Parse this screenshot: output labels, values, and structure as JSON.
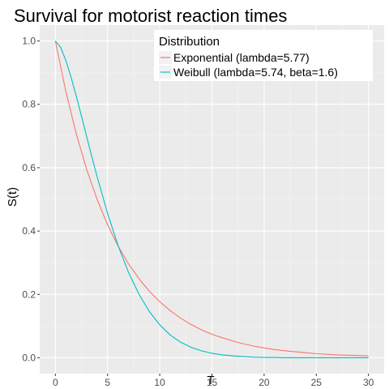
{
  "chart_data": {
    "type": "line",
    "title": "Survival for motorist reaction times",
    "xlabel": "T",
    "ylabel": "S(t)",
    "xlim": [
      -1.5,
      31.5
    ],
    "ylim": [
      -0.05,
      1.05
    ],
    "x_ticks": [
      0,
      5,
      10,
      15,
      20,
      25,
      30
    ],
    "x_tick_labels": [
      "0",
      "5",
      "10",
      "15",
      "20",
      "25",
      "30"
    ],
    "y_ticks": [
      0.0,
      0.2,
      0.4,
      0.6,
      0.8,
      1.0
    ],
    "y_tick_labels": [
      "0.0",
      "0.2",
      "0.4",
      "0.6",
      "0.8",
      "1.0"
    ],
    "grid": true,
    "legend": {
      "title": "Distribution",
      "placement": "top-right",
      "entries": [
        "Exponential (lambda=5.77)",
        "Weibull (lambda=5.74, beta=1.6)"
      ]
    },
    "series": [
      {
        "name": "Exponential (lambda=5.77)",
        "color": "#F8766D",
        "x": [
          0,
          1,
          2,
          3,
          4,
          5,
          6,
          7,
          8,
          9,
          10,
          11,
          12,
          13,
          14,
          15,
          16,
          17,
          18,
          19,
          20,
          21,
          22,
          23,
          24,
          25,
          26,
          27,
          28,
          29,
          30
        ],
        "y": [
          1.0,
          0.841,
          0.707,
          0.594,
          0.5,
          0.42,
          0.353,
          0.297,
          0.25,
          0.21,
          0.177,
          0.149,
          0.125,
          0.105,
          0.088,
          0.074,
          0.063,
          0.053,
          0.044,
          0.037,
          0.031,
          0.026,
          0.022,
          0.019,
          0.016,
          0.013,
          0.011,
          0.009,
          0.008,
          0.007,
          0.006
        ]
      },
      {
        "name": "Weibull (lambda=5.74, beta=1.6)",
        "color": "#00BFC4",
        "x": [
          0,
          0.5,
          1,
          1.5,
          2,
          2.5,
          3,
          3.5,
          4,
          5,
          6,
          7,
          8,
          9,
          10,
          11,
          12,
          13,
          14,
          15,
          16,
          17,
          18,
          19,
          20,
          21,
          22,
          23,
          24,
          25,
          26,
          27,
          28,
          29,
          30
        ],
        "y": [
          1.0,
          0.98,
          0.939,
          0.886,
          0.826,
          0.763,
          0.698,
          0.634,
          0.572,
          0.456,
          0.355,
          0.27,
          0.201,
          0.146,
          0.104,
          0.072,
          0.049,
          0.033,
          0.022,
          0.014,
          0.009,
          0.006,
          0.004,
          0.002,
          0.001,
          0.001,
          0.0,
          0.0,
          0.0,
          0.0,
          0.0,
          0.0,
          0.0,
          0.0,
          0.0
        ]
      }
    ]
  }
}
